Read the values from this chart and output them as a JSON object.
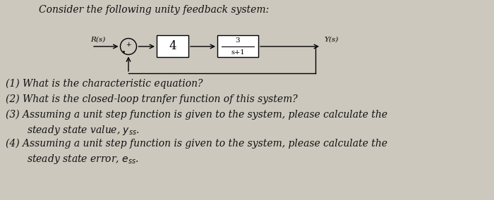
{
  "title": "Consider the following unity feedback system:",
  "bg_color": "#ccc8be",
  "diagram_bg": "#dedad2",
  "box_bg": "#f0eeea",
  "signal_in": "R(s)",
  "signal_out": "Y(s)",
  "box1_label": "4",
  "box2_num": "3",
  "box2_den": "s+1",
  "font_size_title": 10,
  "font_size_q": 10,
  "font_size_diagram": 9,
  "text_color": "#111111",
  "q1": "(1) What is the characteristic equation?",
  "q2": "(2) What is the closed-loop tranfer function of this system?",
  "q3a": "(3) Assuming a unit step function is given to the system, please calculate the",
  "q3b": "    steady state value,            .",
  "q4a": "(4) Assuming a unit step function is given to the system, please calculate the",
  "q4b": "    steady state error,         .",
  "ylim": [
    0,
    2.84
  ],
  "xlim": [
    0,
    7.0
  ]
}
